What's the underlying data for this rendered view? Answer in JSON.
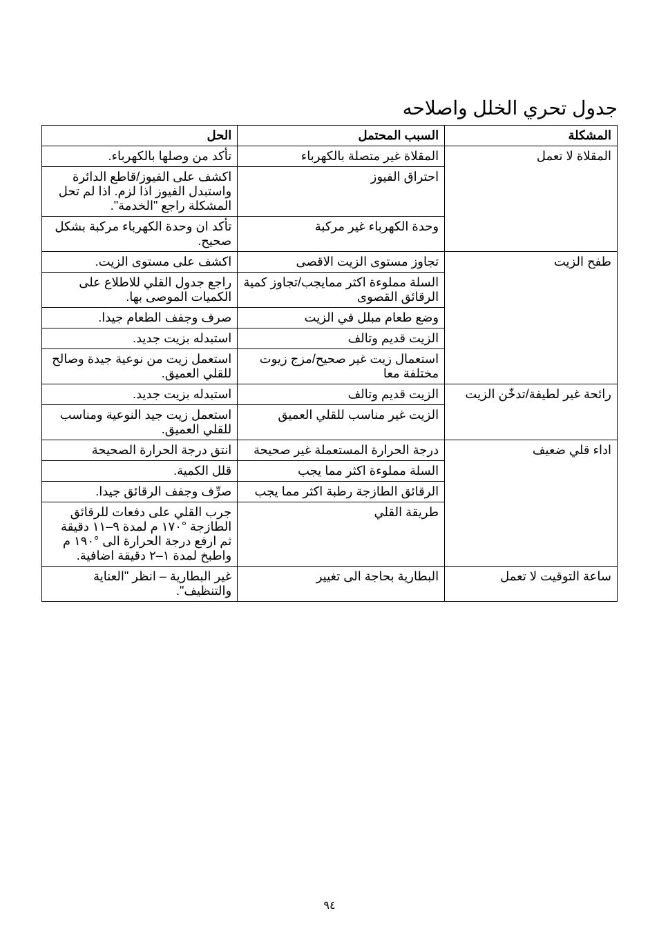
{
  "title": "جدول تحري الخلل واصلاحه",
  "columns": {
    "problem": "المشكلة",
    "cause": "السبب المحتمل",
    "solution": "الحل"
  },
  "footer": "٩٤",
  "rows": [
    {
      "problem": "المقلاة لا تعمل",
      "cause": "المقلاة غير متصلة بالكهرباء",
      "solution": "تأكد من وصلها بالكهرباء."
    },
    {
      "problem": "",
      "cause": "احتراق الفيوز",
      "solution": "اكشف على الفيوز/قاطع الدائرة واستبدل الفيوز اذا لزم. اذا لم تحل المشكلة راجع \"الخدمة\"."
    },
    {
      "problem": "",
      "cause": "وحدة الكهرباء غير مركبة",
      "solution": "تأكد ان وحدة الكهرباء مركبة بشكل صحيح."
    },
    {
      "problem": "طفح الزيت",
      "cause": "تجاوز مستوى الزيت الاقصى",
      "solution": "اكشف على مستوى الزيت."
    },
    {
      "problem": "",
      "cause": "السلة مملوءة اكثر ممايجب/تجاوز كمية الرقائق القصوى",
      "solution": "راجع جدول القلي للاطلاع على الكميات الموصى بها."
    },
    {
      "problem": "",
      "cause": "وضع طعام مبلل في الزيت",
      "solution": "صرف وجفف الطعام جيدا."
    },
    {
      "problem": "",
      "cause": "الزيت قديم وتالف",
      "solution": "استبدله بزيت جديد."
    },
    {
      "problem": "",
      "cause": "استعمال زيت غير صحيح/مزج زيوت مختلفة معا",
      "solution": "استعمل زيت من نوعية جيدة وصالح للقلي العميق."
    },
    {
      "problem": "رائحة غير لطيفة/تدخّن الزيت",
      "cause": "الزيت قديم وتالف",
      "solution": "استبدله بزيت جديد."
    },
    {
      "problem": "",
      "cause": "الزيت غير مناسب للقلي العميق",
      "solution": "استعمل زيت جيد النوعية ومناسب للقلي العميق."
    },
    {
      "problem": "اداء قلي ضعيف",
      "cause": "درجة الحرارة المستعملة غير صحيحة",
      "solution": "انتق درجة الحرارة الصحيحة"
    },
    {
      "problem": "",
      "cause": "السلة مملوءة اكثر مما يجب",
      "solution": "قلل الكمية."
    },
    {
      "problem": "",
      "cause": "الرقائق الطازجة رطبة اكثر مما يجب",
      "solution": "صرِّف وجفف الرقائق جيدا."
    },
    {
      "problem": "",
      "cause": "طريقة القلي",
      "solution": "جرب القلي على دفعات للرقائق الطازجة °١٧٠ م لمدة ٩–١١ دقيقة ثم ارفع درجة الحرارة الى °١٩٠ م واطبخ لمدة ١–٢ دقيقة اضافية."
    },
    {
      "problem": "ساعة التوقيت لا تعمل",
      "cause": "البطارية بحاجة الى تغيير",
      "solution": "غير البطارية – انظر \"العناية والتنظيف\"."
    }
  ],
  "groups": [
    {
      "start": 0,
      "end": 2
    },
    {
      "start": 3,
      "end": 7
    },
    {
      "start": 8,
      "end": 9
    },
    {
      "start": 10,
      "end": 13
    },
    {
      "start": 14,
      "end": 14
    }
  ]
}
